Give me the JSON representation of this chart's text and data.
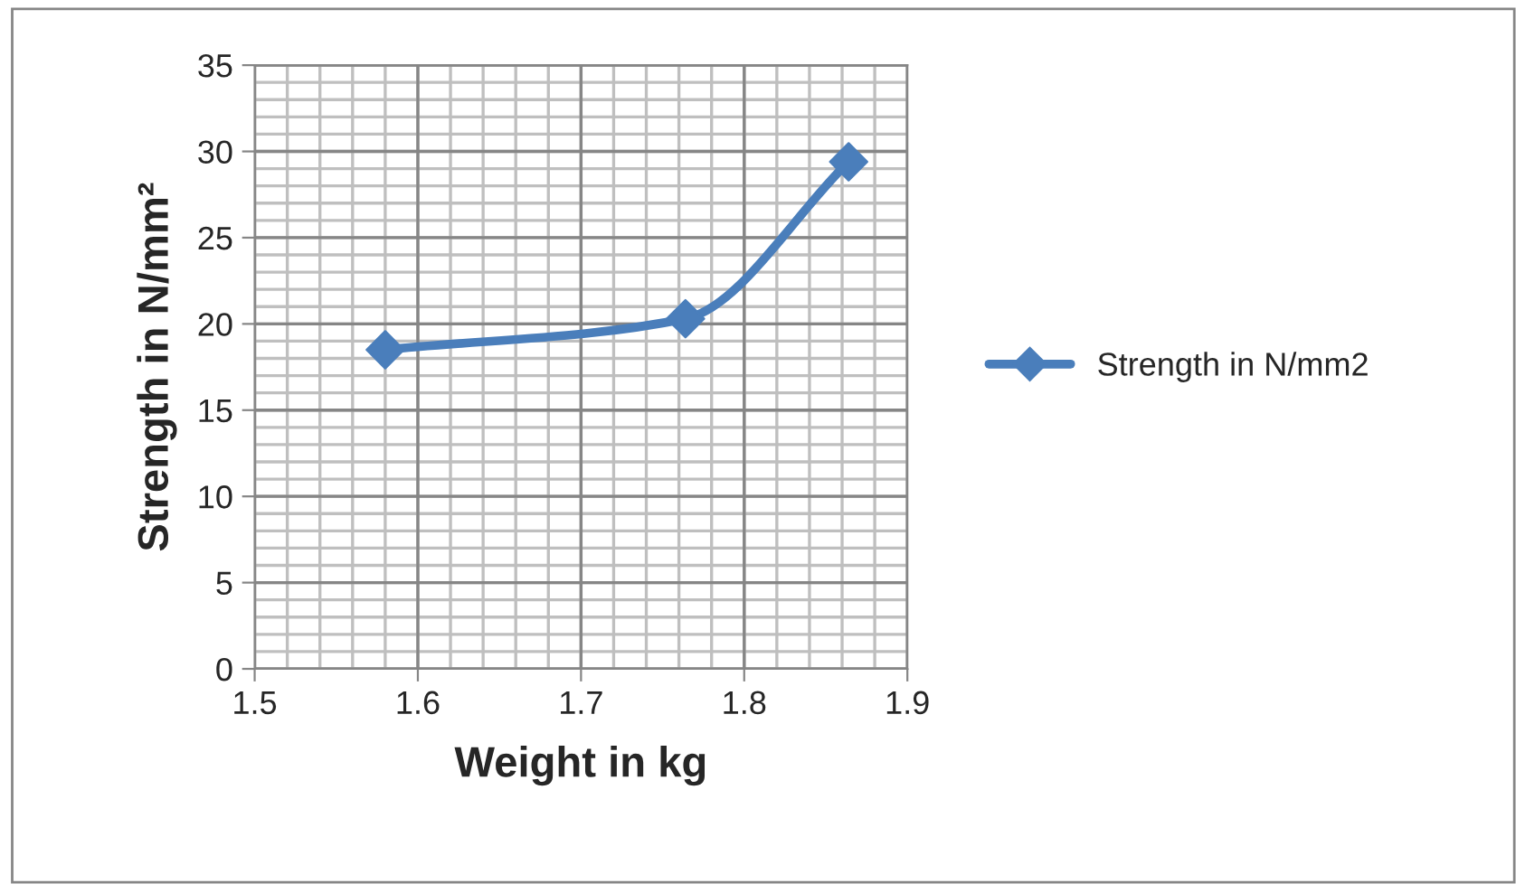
{
  "chart_data": {
    "type": "line",
    "xlabel": "Weight in kg",
    "ylabel": "Strength in N/mm²",
    "x": [
      1.58,
      1.764,
      1.864
    ],
    "series": [
      {
        "name": "Strength in N/mm2",
        "color": "#4a7ebb",
        "values": [
          18.5,
          20.3,
          29.4
        ]
      }
    ],
    "xlim": [
      1.5,
      1.9
    ],
    "xticks": [
      1.5,
      1.6,
      1.7,
      1.8,
      1.9
    ],
    "ylim": [
      0,
      35
    ],
    "yticks": [
      0,
      5,
      10,
      15,
      20,
      25,
      30,
      35
    ],
    "grid": true,
    "legend": "right",
    "marker": "diamond",
    "line_style": "solid"
  }
}
